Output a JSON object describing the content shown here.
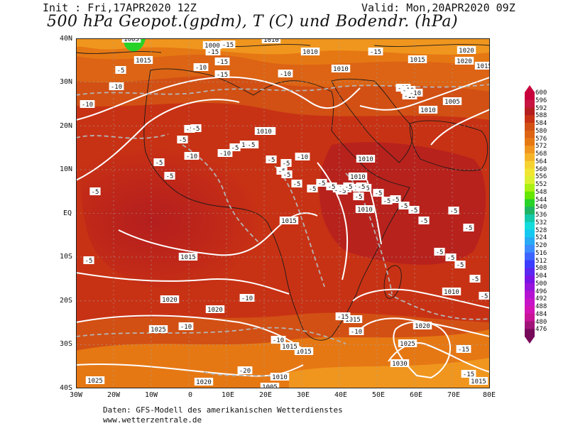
{
  "header": {
    "init": "Init : Fri,17APR2020 12Z",
    "valid": "Valid: Mon,20APR2020 09Z",
    "title": "500 hPa Geopot.(gpdm), T (C) und Bodendr. (hPa)"
  },
  "lat_ticks": [
    "40N",
    "30N",
    "20N",
    "10N",
    "EQ",
    "10S",
    "20S",
    "30S",
    "40S"
  ],
  "lon_ticks": [
    "30W",
    "20W",
    "10W",
    "0",
    "10E",
    "20E",
    "30E",
    "40E",
    "50E",
    "60E",
    "70E",
    "80E"
  ],
  "colorbar": {
    "levels": [
      "600",
      "596",
      "592",
      "588",
      "584",
      "580",
      "576",
      "572",
      "568",
      "564",
      "560",
      "556",
      "552",
      "548",
      "544",
      "540",
      "536",
      "532",
      "528",
      "524",
      "520",
      "516",
      "512",
      "508",
      "504",
      "500",
      "496",
      "492",
      "488",
      "484",
      "480",
      "476"
    ],
    "colors": [
      "#c8003c",
      "#c81440",
      "#b41e1e",
      "#c83214",
      "#d25014",
      "#dc6414",
      "#e67814",
      "#f0961e",
      "#f5b428",
      "#f5d232",
      "#f0e632",
      "#dcf032",
      "#aaf014",
      "#64e600",
      "#28d228",
      "#1eb464",
      "#14c8aa",
      "#14dcdc",
      "#14c8f0",
      "#28aaf5",
      "#3c8cff",
      "#3c64ff",
      "#3c3cff",
      "#5a28f0",
      "#7814e6",
      "#9614dc",
      "#b414d2",
      "#c814c8",
      "#d214b4",
      "#c81496",
      "#a01478",
      "#780a5a"
    ]
  },
  "isobars": [
    {
      "text": "1005"
    },
    {
      "text": "1010"
    },
    {
      "text": "1015"
    },
    {
      "text": "1000"
    },
    {
      "text": "1010"
    },
    {
      "text": "1010"
    },
    {
      "text": "1020"
    },
    {
      "text": "1015"
    },
    {
      "text": "1005"
    },
    {
      "text": "1005"
    },
    {
      "text": "1010"
    },
    {
      "text": "1010"
    },
    {
      "text": "1020"
    },
    {
      "text": "1015"
    },
    {
      "text": "1010"
    },
    {
      "text": "1010"
    },
    {
      "text": "1015"
    },
    {
      "text": "1010"
    },
    {
      "text": "1010"
    },
    {
      "text": "1010"
    },
    {
      "text": "1015"
    },
    {
      "text": "1015"
    },
    {
      "text": "1020"
    },
    {
      "text": "1015"
    },
    {
      "text": "1010"
    },
    {
      "text": "1020"
    },
    {
      "text": "1025"
    },
    {
      "text": "1020"
    },
    {
      "text": "1015"
    },
    {
      "text": "1025"
    },
    {
      "text": "1030"
    },
    {
      "text": "1025"
    },
    {
      "text": "1015"
    },
    {
      "text": "1020"
    },
    {
      "text": "1010"
    },
    {
      "text": "1005"
    },
    {
      "text": "1015"
    }
  ],
  "temps": [
    {
      "text": "-15"
    },
    {
      "text": "-15"
    },
    {
      "text": "-10"
    },
    {
      "text": "-15"
    },
    {
      "text": "-15"
    },
    {
      "text": "-5"
    },
    {
      "text": "-10"
    },
    {
      "text": "-10"
    },
    {
      "text": "-10"
    },
    {
      "text": "-15"
    },
    {
      "text": "-15"
    },
    {
      "text": "-10"
    },
    {
      "text": "-10"
    },
    {
      "text": "-10"
    },
    {
      "text": "-5"
    },
    {
      "text": "-5"
    },
    {
      "text": "-5"
    },
    {
      "text": "-10"
    },
    {
      "text": "-5"
    },
    {
      "text": "-5"
    },
    {
      "text": "-10"
    },
    {
      "text": "-5"
    },
    {
      "text": "-10"
    },
    {
      "text": "-5"
    },
    {
      "text": "-5"
    },
    {
      "text": "-5"
    },
    {
      "text": "-5"
    },
    {
      "text": "-5"
    },
    {
      "text": "-5"
    },
    {
      "text": "-5"
    },
    {
      "text": "-5"
    },
    {
      "text": "-5"
    },
    {
      "text": "-5"
    },
    {
      "text": "-5"
    },
    {
      "text": "-5"
    },
    {
      "text": "-5"
    },
    {
      "text": "-5"
    },
    {
      "text": "-5"
    },
    {
      "text": "-5"
    },
    {
      "text": "-5"
    },
    {
      "text": "-5"
    },
    {
      "text": "-5"
    },
    {
      "text": "-5"
    },
    {
      "text": "-5"
    },
    {
      "text": "-5"
    },
    {
      "text": "-5"
    },
    {
      "text": "-10"
    },
    {
      "text": "-10"
    },
    {
      "text": "-10"
    },
    {
      "text": "-10"
    },
    {
      "text": "-15"
    },
    {
      "text": "-15"
    },
    {
      "text": "-15"
    },
    {
      "text": "-20"
    },
    {
      "text": "-5"
    },
    {
      "text": "-5"
    },
    {
      "text": "-5"
    },
    {
      "text": "-5"
    },
    {
      "text": "-5"
    },
    {
      "text": "-5"
    }
  ],
  "footer": {
    "line1": "Daten: GFS-Modell des amerikanischen Wetterdienstes",
    "line2": "www.wetterzentrale.de"
  }
}
